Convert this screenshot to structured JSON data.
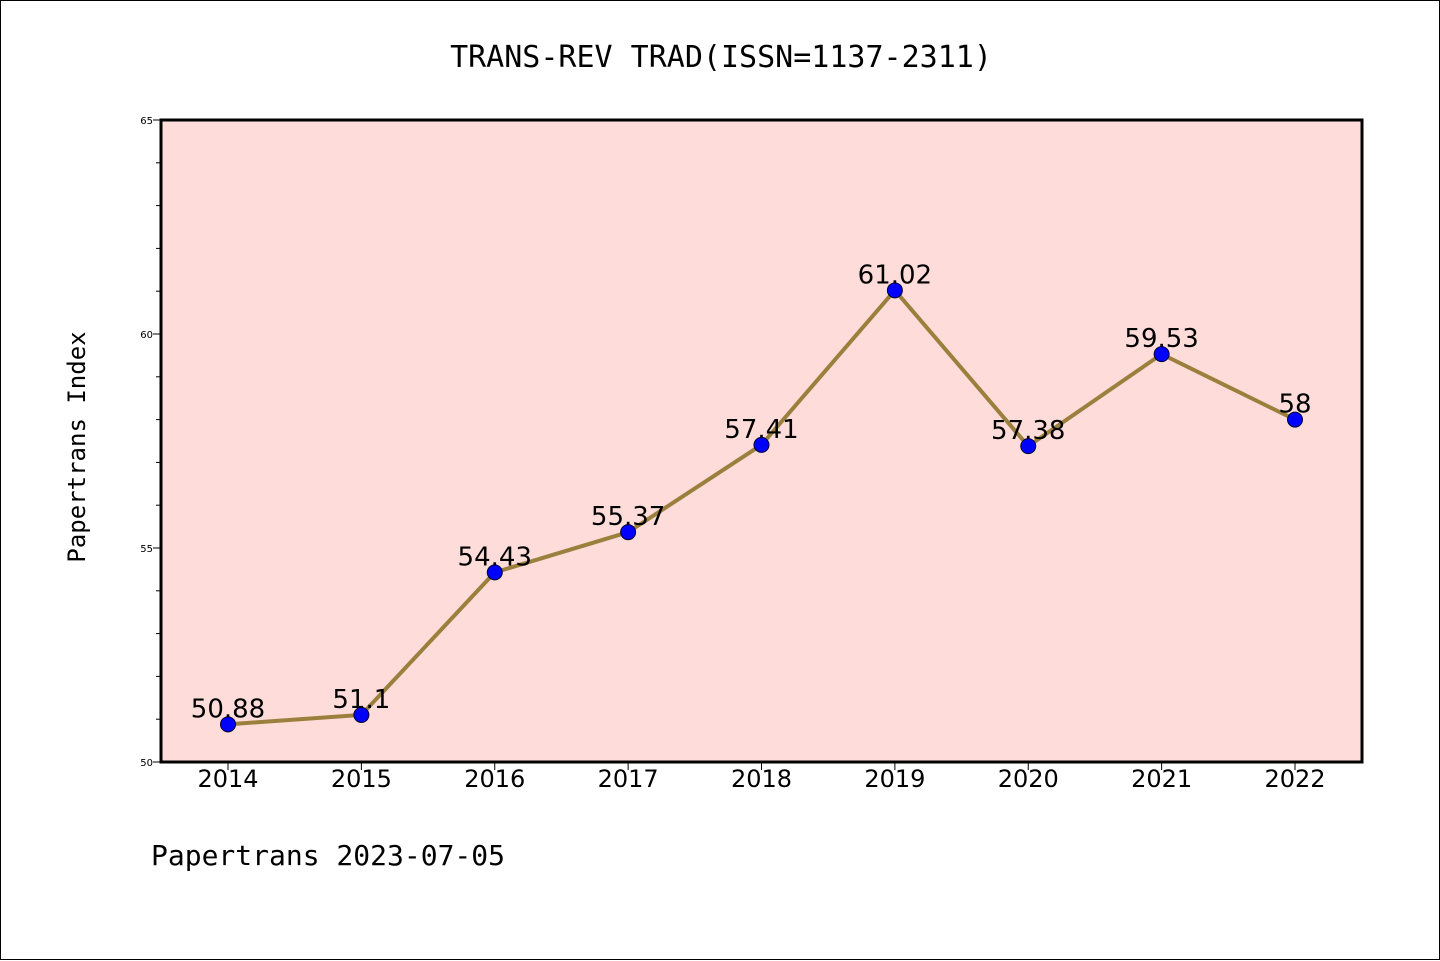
{
  "chart_data": {
    "type": "line",
    "title": "TRANS-REV TRAD(ISSN=1137-2311)",
    "xlabel": "",
    "ylabel": "Papertrans Index",
    "categories": [
      "2014",
      "2015",
      "2016",
      "2017",
      "2018",
      "2019",
      "2020",
      "2021",
      "2022"
    ],
    "values": [
      50.88,
      51.1,
      54.43,
      55.37,
      57.41,
      61.02,
      57.38,
      59.53,
      58
    ],
    "data_labels": [
      "50.88",
      "51.1",
      "54.43",
      "55.37",
      "57.41",
      "61.02",
      "57.38",
      "59.53",
      "58"
    ],
    "ylim": [
      50,
      65
    ],
    "yticks": [
      "50",
      "55",
      "60",
      "65"
    ],
    "grid": false,
    "colors": {
      "plot_background": "#fddcda",
      "line": "#9b7f3c",
      "marker": "#0000ff"
    }
  },
  "footer": "Papertrans 2023-07-05"
}
